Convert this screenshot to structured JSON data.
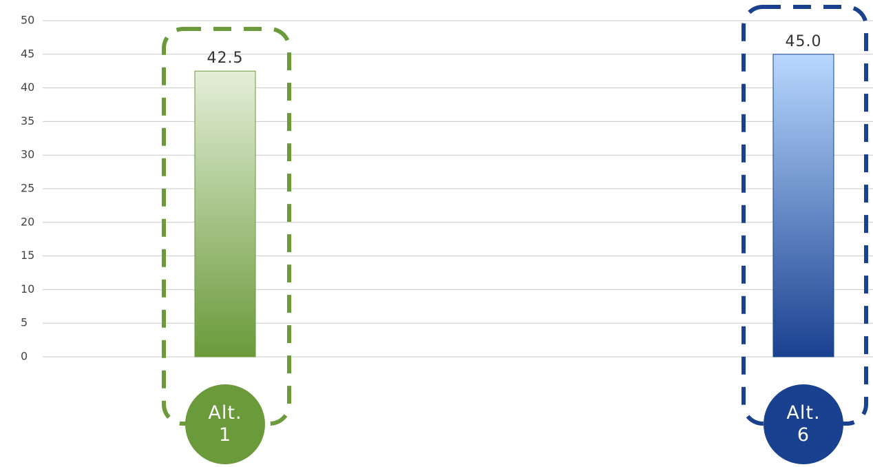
{
  "chart_data": {
    "type": "bar",
    "categories": [
      "Alt. 1",
      "Alt. 6"
    ],
    "values": [
      42.5,
      45
    ],
    "value_labels": [
      "42.5",
      "45.0"
    ],
    "colors": [
      "#6a9a3a",
      "#1a4190"
    ],
    "ylim": [
      0,
      50
    ],
    "yticks": [
      0,
      5,
      10,
      15,
      20,
      25,
      30,
      35,
      40,
      45,
      50
    ],
    "grid": true
  }
}
